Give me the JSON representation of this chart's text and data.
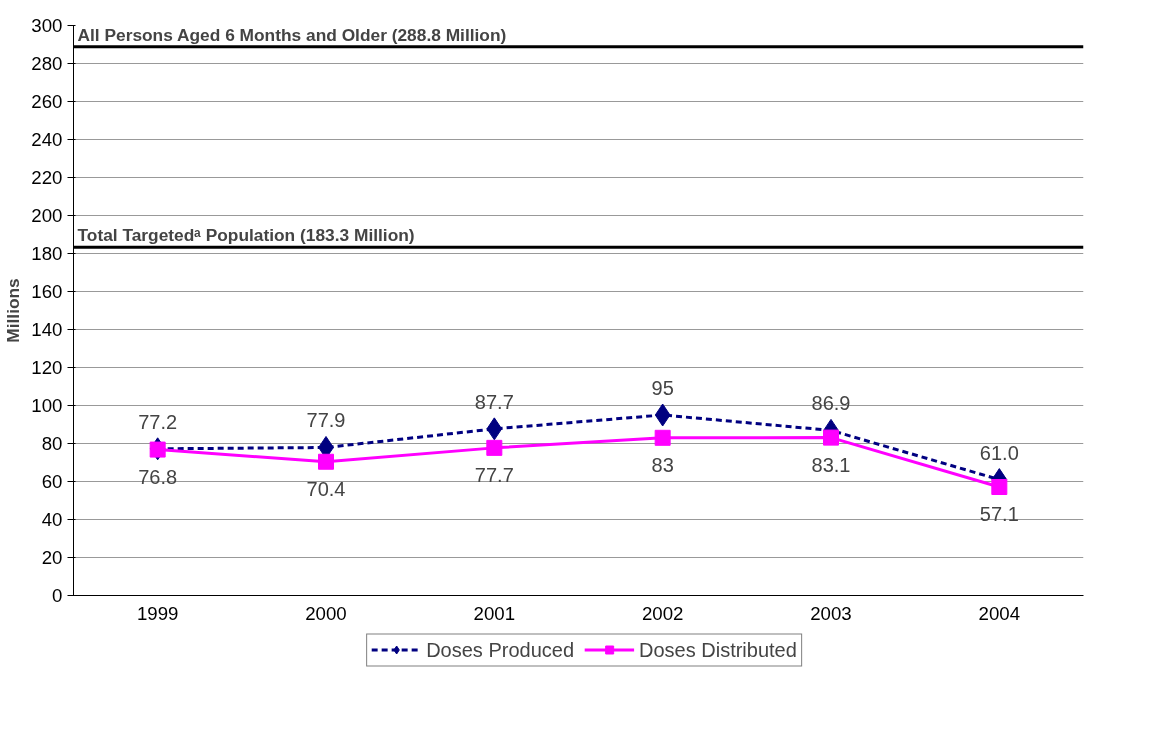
{
  "chart_data": {
    "type": "line",
    "ylabel": "Millions",
    "categories": [
      "1999",
      "2000",
      "2001",
      "2002",
      "2003",
      "2004"
    ],
    "series": [
      {
        "name": "Doses Produced",
        "color": "#000080",
        "values": [
          77.2,
          77.9,
          87.7,
          95,
          86.9,
          61.0
        ],
        "value_labels": [
          "77.2",
          "77.9",
          "87.7",
          "95",
          "86.9",
          "61.0"
        ],
        "marker": "diamond",
        "line_style": "dashed"
      },
      {
        "name": "Doses Distributed",
        "color": "#ff00ff",
        "values": [
          76.8,
          70.4,
          77.7,
          83,
          83.1,
          57.1
        ],
        "value_labels": [
          "76.8",
          "70.4",
          "77.7",
          "83",
          "83.1",
          "57.1"
        ],
        "marker": "square",
        "line_style": "solid"
      }
    ],
    "ref_lines": [
      {
        "axis": "y",
        "value": 288.8,
        "label": "All Persons Aged 6 Months and Older (288.8 Million)",
        "color": "#000000"
      },
      {
        "axis": "y",
        "value": 183.3,
        "label": "Total Targetedᵃ Population (183.3 Million)",
        "color": "#000000"
      }
    ],
    "ylim": [
      0,
      300
    ],
    "yticks": [
      0,
      20,
      40,
      60,
      80,
      100,
      120,
      140,
      160,
      180,
      200,
      220,
      240,
      260,
      280,
      300
    ],
    "grid": "y",
    "legend": "bottom"
  }
}
